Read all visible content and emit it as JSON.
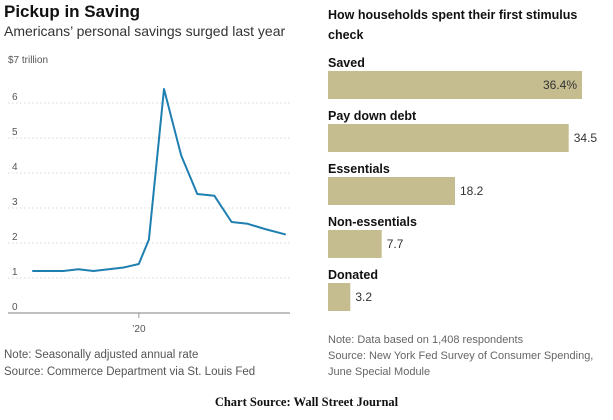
{
  "chart_data": [
    {
      "type": "line",
      "title": "Pickup in Saving",
      "subtitle": "Americans’ personal savings surged last year",
      "yunit_label": "$7 trillion",
      "yticks": [
        "0",
        "1",
        "2",
        "3",
        "4",
        "5",
        "6"
      ],
      "ylim": [
        0,
        7
      ],
      "xtick_labels": [
        "’20"
      ],
      "xlim": [
        2018.9,
        2021.5
      ],
      "xtick_positions": [
        2020.0
      ],
      "series": [
        {
          "x": [
            2018.95,
            2019.1,
            2019.25,
            2019.4,
            2019.55,
            2019.7,
            2019.85,
            2020.0,
            2020.1,
            2020.25,
            2020.42,
            2020.58,
            2020.75,
            2020.92,
            2021.08,
            2021.25,
            2021.45
          ],
          "values": [
            1.2,
            1.2,
            1.2,
            1.25,
            1.2,
            1.25,
            1.3,
            1.4,
            2.1,
            6.4,
            4.5,
            3.4,
            3.35,
            2.6,
            2.55,
            2.4,
            2.25
          ]
        }
      ],
      "notes": [
        "Note: Seasonally adjusted annual rate",
        "Source: Commerce Department via St. Louis Fed"
      ],
      "colors": {
        "line": "#1f7fb0",
        "axis": "#999999",
        "grid": "#cccccc"
      }
    },
    {
      "type": "bar",
      "title": "How households spent their first stimulus check",
      "categories": [
        "Saved",
        "Pay down debt",
        "Essentials",
        "Non-essentials",
        "Donated"
      ],
      "values": [
        36.4,
        34.5,
        18.2,
        7.7,
        3.2
      ],
      "value_labels": [
        "36.4%",
        "34.5",
        "18.2",
        "7.7",
        "3.2"
      ],
      "xlim": [
        0,
        36.4
      ],
      "notes": [
        "Note: Data based on 1,408 respondents",
        "Source: New York Fed Survey of Consumer Spending,",
        "June Special Module"
      ],
      "colors": {
        "bar": "#c5bd8f"
      }
    }
  ],
  "footer": {
    "source": "Chart Source: Wall Street Journal"
  }
}
